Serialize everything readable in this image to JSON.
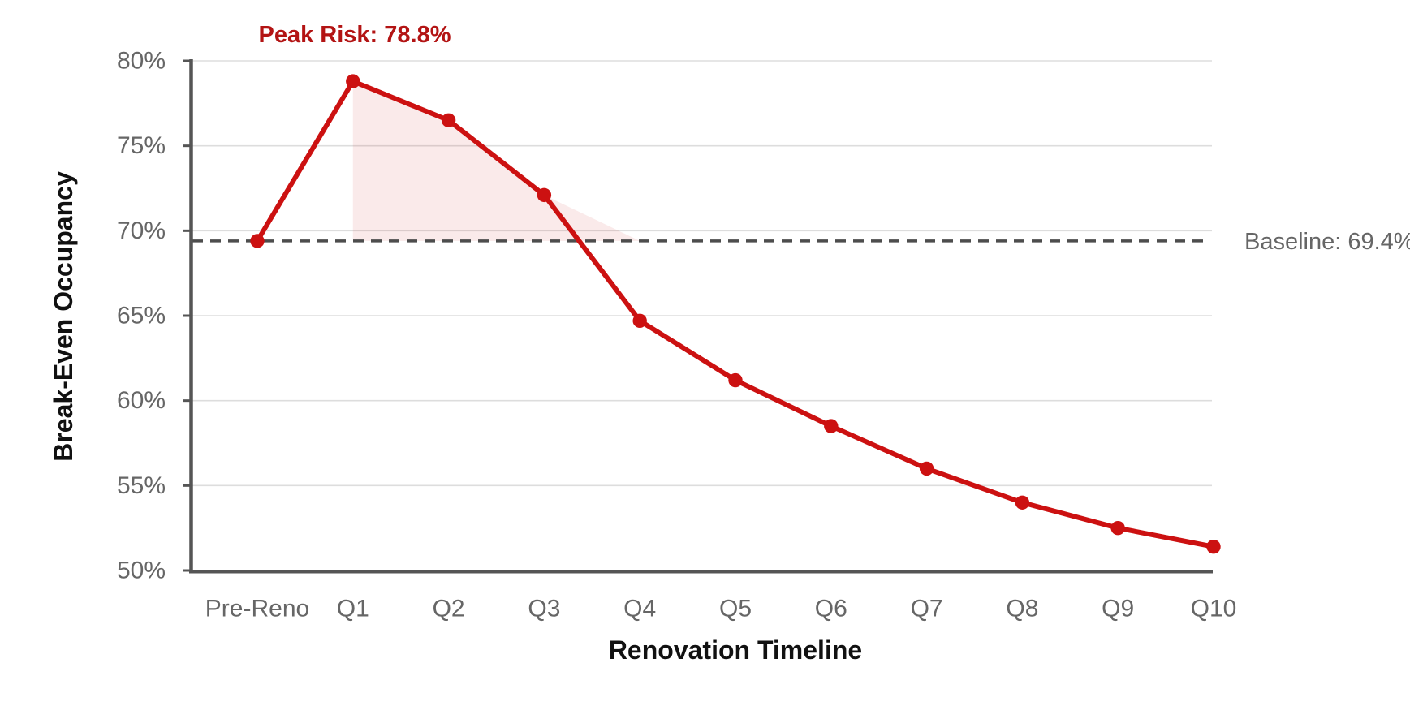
{
  "chart_data": {
    "type": "line",
    "xlabel": "Renovation Timeline",
    "ylabel": "Break-Even Occupancy",
    "categories": [
      "Pre-Reno",
      "Q1",
      "Q2",
      "Q3",
      "Q4",
      "Q5",
      "Q6",
      "Q7",
      "Q8",
      "Q9",
      "Q10"
    ],
    "series": [
      {
        "values": [
          69.4,
          78.8,
          76.5,
          72.1,
          64.7,
          61.2,
          58.5,
          56.0,
          54.0,
          52.5,
          51.4
        ]
      }
    ],
    "ylim": [
      50,
      80
    ],
    "yticks": [
      50,
      55,
      60,
      65,
      70,
      75,
      80
    ],
    "ytick_suffix": "%",
    "grid": "horizontal",
    "legend": "none",
    "baseline": {
      "value": 69.4,
      "label": "Baseline: 69.4%",
      "style": "dashed"
    },
    "annotation": {
      "text": "Peak Risk: 78.8%",
      "category": "Q1",
      "value": 78.8
    },
    "risk_area": {
      "from_category": "Q1",
      "to_category": "Q4",
      "clamped_to_baseline": true
    }
  },
  "colors": {
    "line": "#cc1111",
    "marker": "#cc1111",
    "risk_fill": "rgba(204,17,17,0.09)",
    "annotation_text": "#b31414",
    "baseline_line": "#4d4d4d",
    "muted_text": "#666666",
    "title_text": "#111111",
    "spine": "#555555",
    "gridline": "#dddddd",
    "background": "#ffffff"
  }
}
